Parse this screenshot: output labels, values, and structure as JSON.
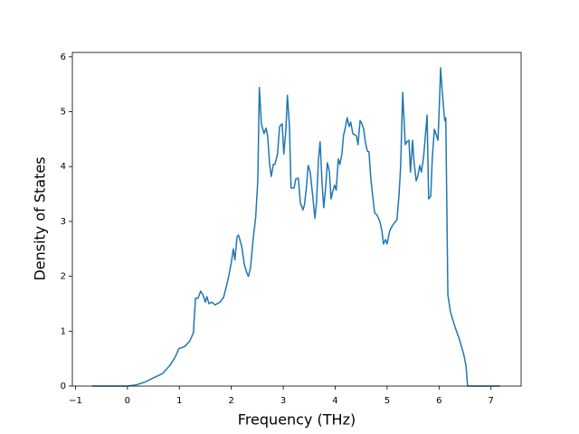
{
  "chart_data": {
    "type": "line",
    "x_label": "Frequency (THz)",
    "y_label": "Density of States",
    "x": [
      -0.68,
      0,
      0.16,
      0.33,
      0.5,
      0.68,
      0.82,
      0.92,
      0.99,
      1.1,
      1.2,
      1.27,
      1.31,
      1.36,
      1.41,
      1.46,
      1.5,
      1.53,
      1.57,
      1.62,
      1.69,
      1.78,
      1.85,
      1.9,
      1.95,
      2.0,
      2.04,
      2.07,
      2.11,
      2.14,
      2.2,
      2.25,
      2.3,
      2.33,
      2.37,
      2.42,
      2.47,
      2.51,
      2.54,
      2.58,
      2.63,
      2.67,
      2.7,
      2.74,
      2.77,
      2.81,
      2.84,
      2.89,
      2.93,
      2.98,
      3.01,
      3.05,
      3.08,
      3.12,
      3.15,
      3.21,
      3.24,
      3.29,
      3.33,
      3.38,
      3.41,
      3.45,
      3.48,
      3.52,
      3.57,
      3.61,
      3.64,
      3.68,
      3.71,
      3.75,
      3.78,
      3.82,
      3.85,
      3.89,
      3.92,
      3.95,
      3.99,
      4.02,
      4.06,
      4.09,
      4.13,
      4.16,
      4.2,
      4.23,
      4.27,
      4.3,
      4.34,
      4.41,
      4.44,
      4.48,
      4.51,
      4.55,
      4.58,
      4.62,
      4.65,
      4.69,
      4.72,
      4.76,
      4.81,
      4.86,
      4.9,
      4.93,
      4.97,
      5.0,
      5.05,
      5.1,
      5.16,
      5.19,
      5.23,
      5.26,
      5.3,
      5.35,
      5.38,
      5.42,
      5.45,
      5.49,
      5.52,
      5.56,
      5.59,
      5.63,
      5.66,
      5.7,
      5.73,
      5.77,
      5.8,
      5.84,
      5.87,
      5.91,
      5.94,
      5.98,
      6.01,
      6.03,
      6.06,
      6.1,
      6.11,
      6.13,
      6.17,
      6.22,
      6.31,
      6.39,
      6.48,
      6.52,
      6.55,
      7.18
    ],
    "series": [
      {
        "color": "#1f77b4",
        "values": [
          0,
          0,
          0.02,
          0.07,
          0.15,
          0.23,
          0.38,
          0.53,
          0.68,
          0.72,
          0.82,
          0.97,
          1.6,
          1.6,
          1.73,
          1.65,
          1.53,
          1.63,
          1.5,
          1.53,
          1.48,
          1.53,
          1.61,
          1.8,
          2.0,
          2.25,
          2.5,
          2.3,
          2.72,
          2.75,
          2.55,
          2.22,
          2.06,
          2.0,
          2.15,
          2.67,
          3.08,
          3.74,
          5.44,
          4.78,
          4.6,
          4.7,
          4.56,
          4.02,
          3.82,
          4.04,
          4.04,
          4.23,
          4.73,
          4.78,
          4.23,
          4.65,
          5.3,
          4.73,
          3.61,
          3.61,
          3.77,
          3.79,
          3.34,
          3.21,
          3.31,
          3.66,
          4.02,
          3.9,
          3.44,
          3.06,
          3.34,
          4.15,
          4.45,
          3.66,
          3.25,
          3.66,
          4.07,
          3.9,
          3.41,
          3.54,
          3.66,
          3.57,
          4.14,
          4.04,
          4.23,
          4.56,
          4.73,
          4.89,
          4.73,
          4.81,
          4.6,
          4.56,
          4.4,
          4.84,
          4.79,
          4.68,
          4.45,
          4.28,
          4.27,
          3.74,
          3.49,
          3.16,
          3.11,
          3.0,
          2.83,
          2.59,
          2.67,
          2.59,
          2.83,
          2.92,
          3.0,
          3.03,
          3.49,
          3.99,
          5.35,
          4.4,
          4.45,
          4.48,
          3.9,
          4.48,
          4.07,
          3.74,
          3.82,
          4.02,
          3.9,
          4.15,
          4.48,
          4.94,
          3.41,
          3.46,
          4.15,
          4.68,
          4.6,
          4.48,
          5.22,
          5.8,
          5.39,
          4.93,
          4.84,
          4.89,
          1.66,
          1.35,
          1.07,
          0.86,
          0.56,
          0.36,
          0,
          0
        ]
      }
    ],
    "xlim": [
      -1.06,
      7.58
    ],
    "ylim": [
      0,
      6.08
    ],
    "xticks": [
      {
        "value": -1,
        "label": "−1"
      },
      0,
      1,
      2,
      3,
      4,
      5,
      6,
      7
    ],
    "yticks": [
      0,
      1,
      2,
      3,
      4,
      5,
      6
    ]
  }
}
